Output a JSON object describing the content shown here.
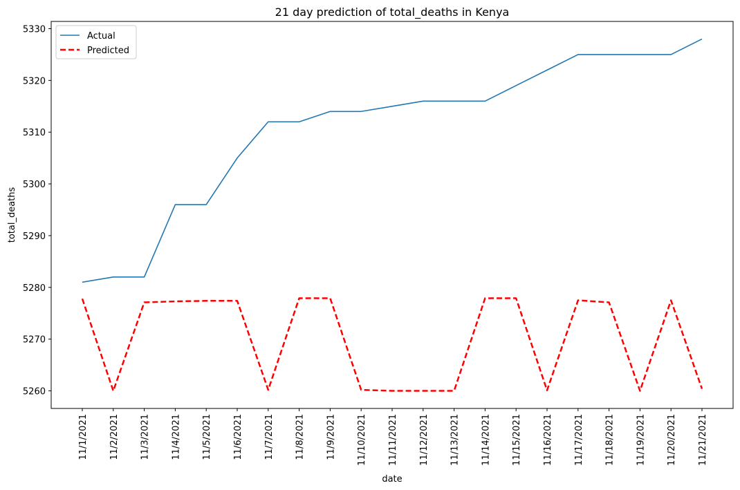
{
  "chart_data": {
    "type": "line",
    "title": "21 day prediction of total_deaths in Kenya",
    "xlabel": "date",
    "ylabel": "total_deaths",
    "categories": [
      "11/1/2021",
      "11/2/2021",
      "11/3/2021",
      "11/4/2021",
      "11/5/2021",
      "11/6/2021",
      "11/7/2021",
      "11/8/2021",
      "11/9/2021",
      "11/10/2021",
      "11/11/2021",
      "11/12/2021",
      "11/13/2021",
      "11/14/2021",
      "11/15/2021",
      "11/16/2021",
      "11/17/2021",
      "11/18/2021",
      "11/19/2021",
      "11/20/2021",
      "11/21/2021"
    ],
    "yticks": [
      5260,
      5270,
      5280,
      5290,
      5300,
      5310,
      5320,
      5330
    ],
    "ylim": [
      5256.6,
      5331.4
    ],
    "grid": false,
    "legend_position": "upper-left",
    "series": [
      {
        "name": "Actual",
        "color": "#1f77b4",
        "style": "solid",
        "values": [
          5281,
          5282,
          5282,
          5296,
          5296,
          5305,
          5312,
          5312,
          5314,
          5314,
          5315,
          5316,
          5316,
          5316,
          5319,
          5322,
          5325,
          5325,
          5325,
          5325,
          5328
        ]
      },
      {
        "name": "Predicted",
        "color": "#ff0000",
        "style": "dashed",
        "values": [
          5277.8,
          5260,
          5277.1,
          5277.3,
          5277.4,
          5277.4,
          5260.2,
          5277.9,
          5277.9,
          5260.2,
          5260,
          5260,
          5260,
          5277.9,
          5277.9,
          5260.1,
          5277.5,
          5277.1,
          5260,
          5277.5,
          5260.4
        ]
      }
    ]
  }
}
